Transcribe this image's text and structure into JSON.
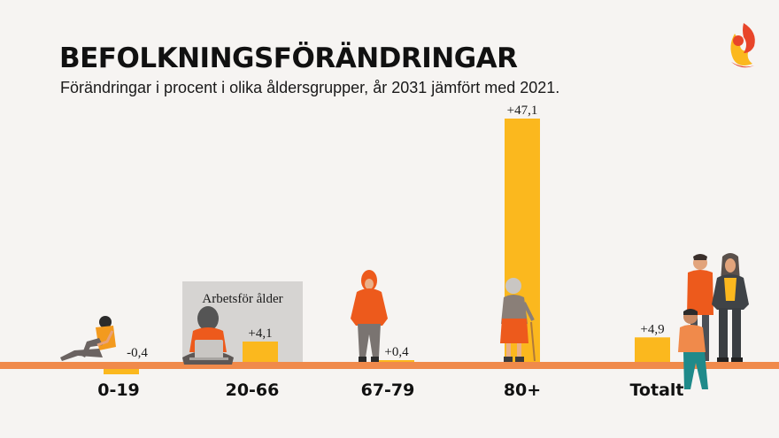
{
  "header": {
    "title": "BEFOLKNINGSFÖRÄNDRINGAR",
    "subtitle": "Förändringar i procent i olika åldersgrupper, år 2031 jämfört med 2021."
  },
  "logo": {
    "icon": "flame-crest-icon"
  },
  "colors": {
    "bar": "#fbb81e",
    "baseline": "#f08a4b",
    "highlight_box": "#d6d4d2",
    "background": "#f6f4f2",
    "figure_orange": "#ed5a1c",
    "figure_grey": "#7a7471"
  },
  "chart_data": {
    "type": "bar",
    "categories": [
      "0-19",
      "20-66",
      "67-79",
      "80+",
      "Totalt"
    ],
    "values": [
      -0.4,
      4.1,
      0.4,
      47.1,
      4.9
    ],
    "value_labels": [
      "-0,4",
      "+4,1",
      "+0,4",
      "+47,1",
      "+4,9"
    ],
    "highlight": {
      "category": "20-66",
      "label": "Arbetsför ålder"
    },
    "grid": false,
    "legend": "none"
  },
  "illustrations": [
    "child-sitting-icon",
    "adult-with-laptop-icon",
    "woman-headscarf-icon",
    "elderly-woman-cane-icon",
    "family-group-icon"
  ]
}
